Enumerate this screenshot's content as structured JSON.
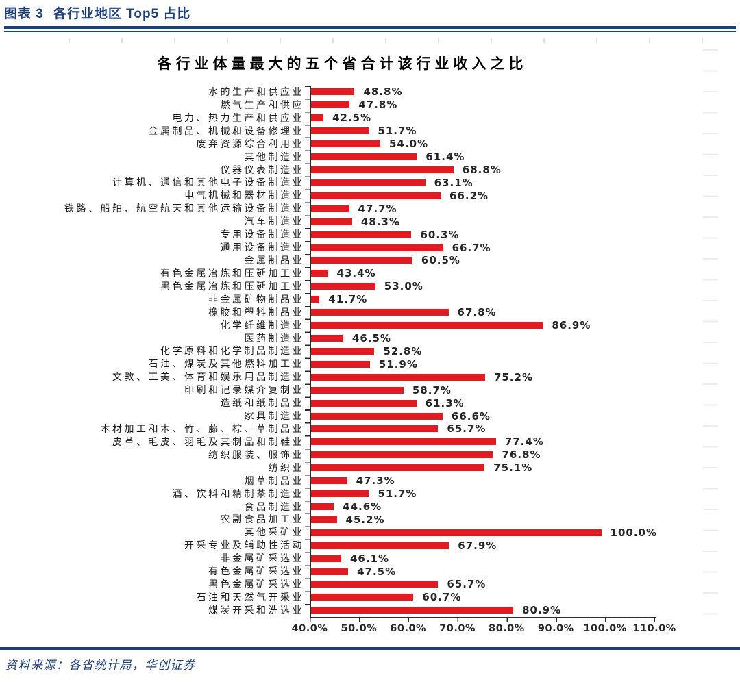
{
  "header": {
    "figure_label": "图表 3",
    "figure_title": "各行业地区 Top5 占比",
    "accent_color": "#1e4077"
  },
  "chart_data": {
    "type": "bar",
    "orientation": "horizontal",
    "title": "各行业体量最大的五个省合计该行业收入之比",
    "bar_color": "#e31a21",
    "grid": false,
    "legend": "none",
    "xlim": [
      40,
      110
    ],
    "x_tick_labels": [
      "40.0%",
      "50.0%",
      "60.0%",
      "70.0%",
      "80.0%",
      "90.0%",
      "100.0%",
      "110.0%"
    ],
    "categories": [
      "水的生产和供应业",
      "燃气生产和供应",
      "电力、热力生产和供应业",
      "金属制品、机械和设备修理业",
      "废弃资源综合利用业",
      "其他制造业",
      "仪器仪表制造业",
      "计算机、通信和其他电子设备制造业",
      "电气机械和器材制造业",
      "铁路、船舶、航空航天和其他运输设备制造业",
      "汽车制造业",
      "专用设备制造业",
      "通用设备制造业",
      "金属制品业",
      "有色金属冶炼和压延加工业",
      "黑色金属冶炼和压延加工业",
      "非金属矿物制品业",
      "橡胶和塑料制品业",
      "化学纤维制造业",
      "医药制造业",
      "化学原料和化学制品制造业",
      "石油、煤炭及其他燃料加工业",
      "文教、工美、体育和娱乐用品制造业",
      "印刷和记录媒介复制业",
      "造纸和纸制品业",
      "家具制造业",
      "木材加工和木、竹、藤、棕、草制品业",
      "皮革、毛皮、羽毛及其制品和制鞋业",
      "纺织服装、服饰业",
      "纺织业",
      "烟草制品业",
      "酒、饮料和精制茶制造业",
      "食品制造业",
      "农副食品加工业",
      "其他采矿业",
      "开采专业及辅助性活动",
      "非金属矿采选业",
      "有色金属矿采选业",
      "黑色金属矿采选业",
      "石油和天然气开采业",
      "煤炭开采和洗选业"
    ],
    "values": [
      48.8,
      47.8,
      42.5,
      51.7,
      54.0,
      61.4,
      68.8,
      63.1,
      66.2,
      47.7,
      48.3,
      60.3,
      66.7,
      60.5,
      43.4,
      53.0,
      41.7,
      67.8,
      86.9,
      46.5,
      52.8,
      51.9,
      75.2,
      58.7,
      61.3,
      66.6,
      65.7,
      77.4,
      76.8,
      75.1,
      47.3,
      51.7,
      44.6,
      45.2,
      100.0,
      67.9,
      46.1,
      47.5,
      65.7,
      60.7,
      80.9
    ],
    "value_labels": [
      "48.8%",
      "47.8%",
      "42.5%",
      "51.7%",
      "54.0%",
      "61.4%",
      "68.8%",
      "63.1%",
      "66.2%",
      "47.7%",
      "48.3%",
      "60.3%",
      "66.7%",
      "60.5%",
      "43.4%",
      "53.0%",
      "41.7%",
      "67.8%",
      "86.9%",
      "46.5%",
      "52.8%",
      "51.9%",
      "75.2%",
      "58.7%",
      "61.3%",
      "66.6%",
      "65.7%",
      "77.4%",
      "76.8%",
      "75.1%",
      "47.3%",
      "51.7%",
      "44.6%",
      "45.2%",
      "100.0%",
      "67.9%",
      "46.1%",
      "47.5%",
      "65.7%",
      "60.7%",
      "80.9%"
    ]
  },
  "footer": {
    "source": "资料来源：各省统计局，华创证券"
  }
}
